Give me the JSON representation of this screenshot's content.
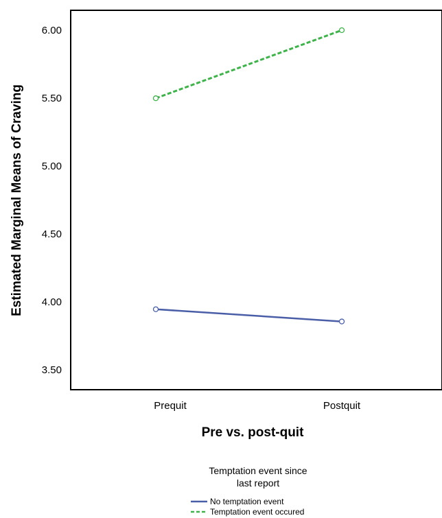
{
  "chart_data": {
    "type": "line",
    "title": "",
    "xlabel": "Pre vs. post-quit",
    "ylabel": "Estimated Marginal Means of Craving",
    "categories": [
      "Prequit",
      "Postquit"
    ],
    "ylim": [
      3.4,
      6.13
    ],
    "yticks": [
      "3.50",
      "4.00",
      "4.50",
      "5.00",
      "5.50",
      "6.00"
    ],
    "grid": false,
    "legend": {
      "title_line1": "Temptation event since",
      "title_line2": "last report",
      "placement": "bottom"
    },
    "series": [
      {
        "name": "No temptation event",
        "values": [
          3.95,
          3.86
        ],
        "color": "#4a5ea8",
        "style": "solid"
      },
      {
        "name": "Temptation event occured",
        "values": [
          5.5,
          6.0
        ],
        "color": "#3db34a",
        "style": "dashed"
      }
    ]
  }
}
